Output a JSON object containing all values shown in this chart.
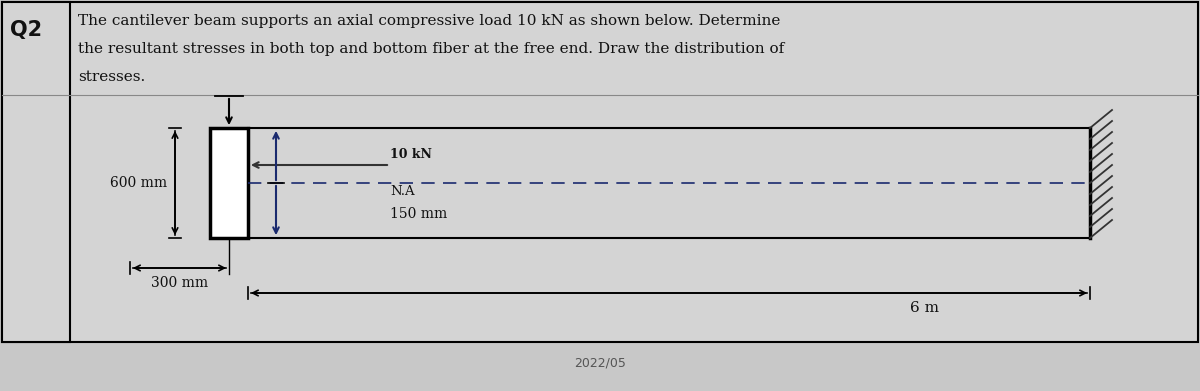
{
  "bg_color": "#c8c8c8",
  "cell_bg_color": "#d4d4d4",
  "white": "#ffffff",
  "black": "#000000",
  "dark_gray": "#333333",
  "blue_dark": "#1a2a6e",
  "text_color": "#111111",
  "q2_label": "Q2",
  "question_text_line1": "The cantilever beam supports an axial compressive load 10 kN as shown below. Determine",
  "question_text_line2": "the resultant stresses in both top and bottom fiber at the free end. Draw the distribution of",
  "question_text_line3": "stresses.",
  "label_600mm": "600 mm",
  "label_300mm": "300 mm",
  "label_150mm": "150 mm",
  "label_10kN": "10 kN",
  "label_NA": "N.A",
  "label_6m": "6 m",
  "date_text": "2022/05",
  "figsize": [
    12.0,
    3.91
  ],
  "dpi": 100
}
